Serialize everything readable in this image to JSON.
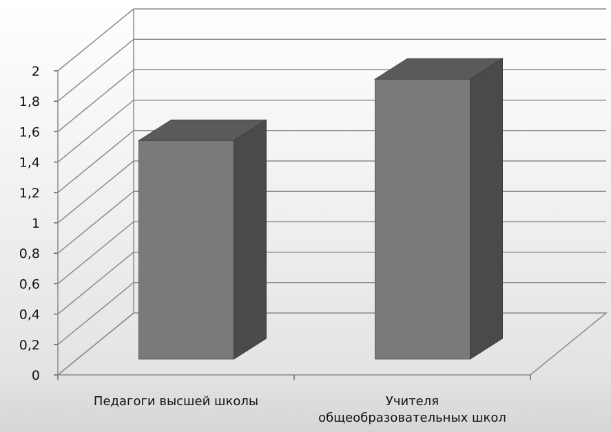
{
  "chart_data": {
    "type": "bar",
    "title": "",
    "xlabel": "",
    "ylabel": "",
    "categories": [
      [
        "Педагоги высшей школы"
      ],
      [
        "Учителя",
        "общеобразовательных школ"
      ]
    ],
    "values": [
      1.6,
      2.05
    ],
    "ylim": [
      0,
      2
    ],
    "yticks": [
      "0",
      "0,2",
      "0,4",
      "0,6",
      "0,8",
      "1",
      "1,2",
      "1,4",
      "1,6",
      "1,8",
      "2"
    ],
    "grid": true,
    "bar_color": "#7a7a7a",
    "bar_top_color": "#5a5a5a",
    "bar_side_color": "#4a4a4a"
  }
}
